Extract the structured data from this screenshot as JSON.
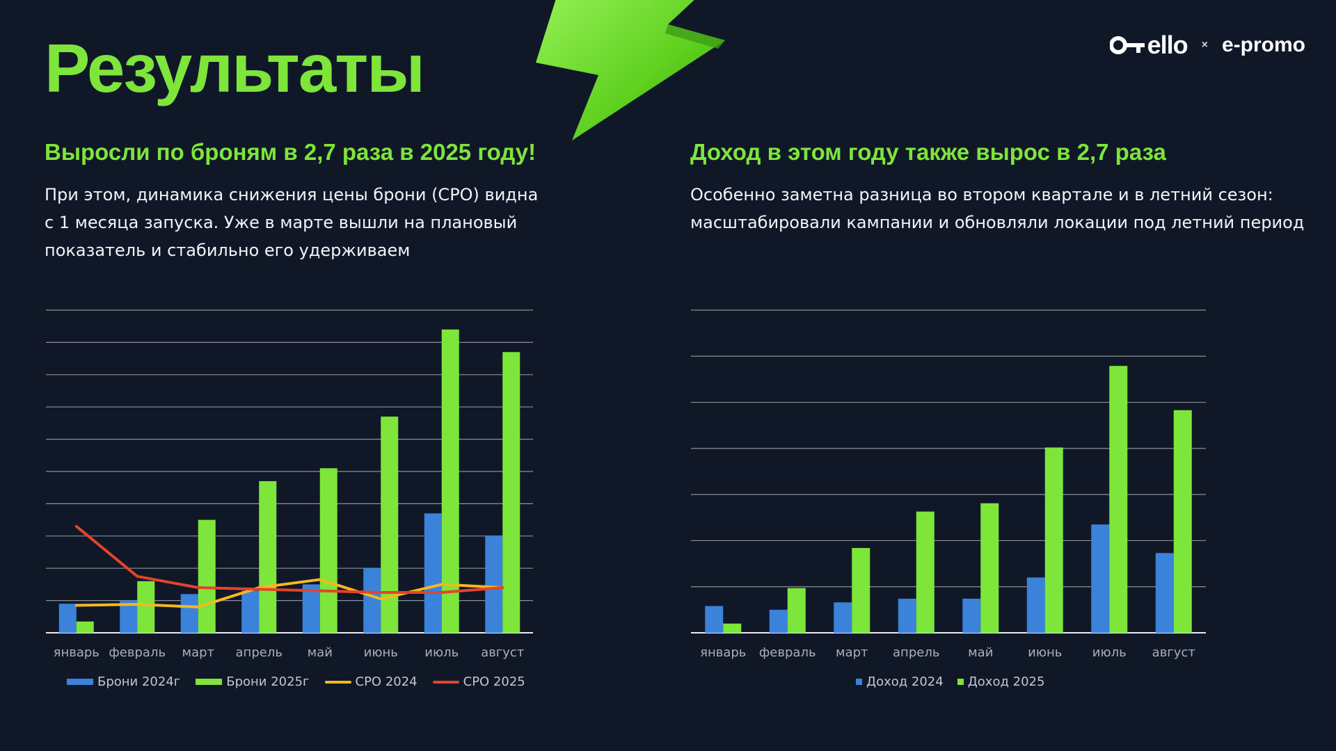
{
  "header": {
    "title": "Результаты",
    "logo_left": "ello",
    "logo_separator": "×",
    "logo_right": "e-promo"
  },
  "left_panel": {
    "heading": "Выросли по броням в 2,7 раза в 2025 году!",
    "text": "При этом, динамика снижения цены брони (CPO) видна с 1 месяца запуска. Уже в марте вышли на плановый показатель и стабильно его удерживаем"
  },
  "right_panel": {
    "heading": "Доход в этом году также вырос в 2,7 раза",
    "text": "Особенно заметна разница во втором квартале и в летний сезон: масштабировали кампании и обновляли локации под летний период"
  },
  "colors": {
    "bg": "#101828",
    "accent_green": "#7ee53b",
    "blue": "#3b82db",
    "yellow": "#f5b81f",
    "red": "#e5432a"
  },
  "chart_data": [
    {
      "type": "bar",
      "title": "",
      "xlabel": "",
      "ylabel": "",
      "ylim": [
        0,
        100
      ],
      "grid": true,
      "legend": "bottom",
      "categories": [
        "январь",
        "февраль",
        "март",
        "апрель",
        "май",
        "июнь",
        "июль",
        "август"
      ],
      "series": [
        {
          "name": "Брони 2024г",
          "kind": "bar",
          "color": "#3b82db",
          "values": [
            9,
            10,
            12,
            13,
            15,
            20,
            37,
            30
          ]
        },
        {
          "name": "Брони 2025г",
          "kind": "bar",
          "color": "#7ee53b",
          "values": [
            3.5,
            16,
            35,
            47,
            51,
            67,
            94,
            87
          ]
        }
      ],
      "line_series": [
        {
          "name": "CPO 2024",
          "kind": "line",
          "color": "#f5b81f",
          "values": [
            8.5,
            8.8,
            8,
            14,
            16.5,
            10.5,
            15,
            14
          ]
        },
        {
          "name": "CPO 2025",
          "kind": "line",
          "color": "#e5432a",
          "values": [
            33,
            17.5,
            14,
            13.5,
            13,
            12.5,
            12.5,
            14
          ]
        }
      ]
    },
    {
      "type": "bar",
      "title": "",
      "xlabel": "",
      "ylabel": "",
      "ylim": [
        0,
        70
      ],
      "grid": true,
      "legend": "bottom",
      "categories": [
        "январь",
        "февраль",
        "март",
        "апрель",
        "май",
        "июнь",
        "июль",
        "август"
      ],
      "series": [
        {
          "name": "Доход 2024",
          "kind": "bar",
          "color": "#3b82db",
          "values": [
            5.8,
            5,
            6.6,
            7.4,
            7.4,
            12,
            23.5,
            17.3
          ]
        },
        {
          "name": "Доход 2025",
          "kind": "bar",
          "color": "#7ee53b",
          "values": [
            2,
            9.7,
            18.4,
            26.3,
            28.1,
            40.2,
            57.9,
            48.3
          ]
        }
      ]
    }
  ]
}
